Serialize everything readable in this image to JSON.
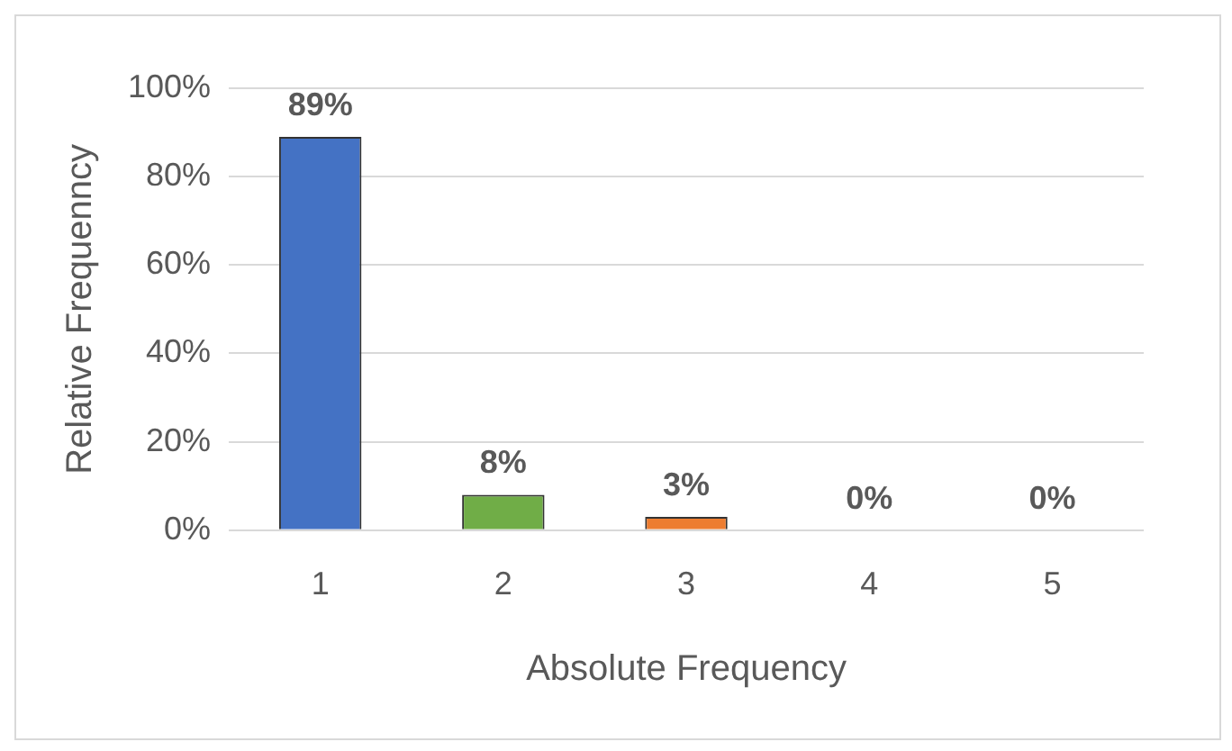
{
  "chart_data": {
    "type": "bar",
    "xlabel": "Absolute Frequency",
    "ylabel": "Relative Frequenncy",
    "categories": [
      "1",
      "2",
      "3",
      "4",
      "5"
    ],
    "values": [
      89,
      8,
      3,
      0,
      0
    ],
    "colors": [
      "#4472c4",
      "#70ad47",
      "#ed7d31",
      "#7030a0",
      "#1f7a8c"
    ],
    "value_labels": [
      "89%",
      "8%",
      "3%",
      "0%",
      "0%"
    ],
    "ylim": [
      0,
      100
    ],
    "yticks": [
      {
        "value": 0,
        "label": "0%"
      },
      {
        "value": 20,
        "label": "20%"
      },
      {
        "value": 40,
        "label": "40%"
      },
      {
        "value": 60,
        "label": "60%"
      },
      {
        "value": 80,
        "label": "80%"
      },
      {
        "value": 100,
        "label": "100%"
      }
    ],
    "grid": "y"
  }
}
